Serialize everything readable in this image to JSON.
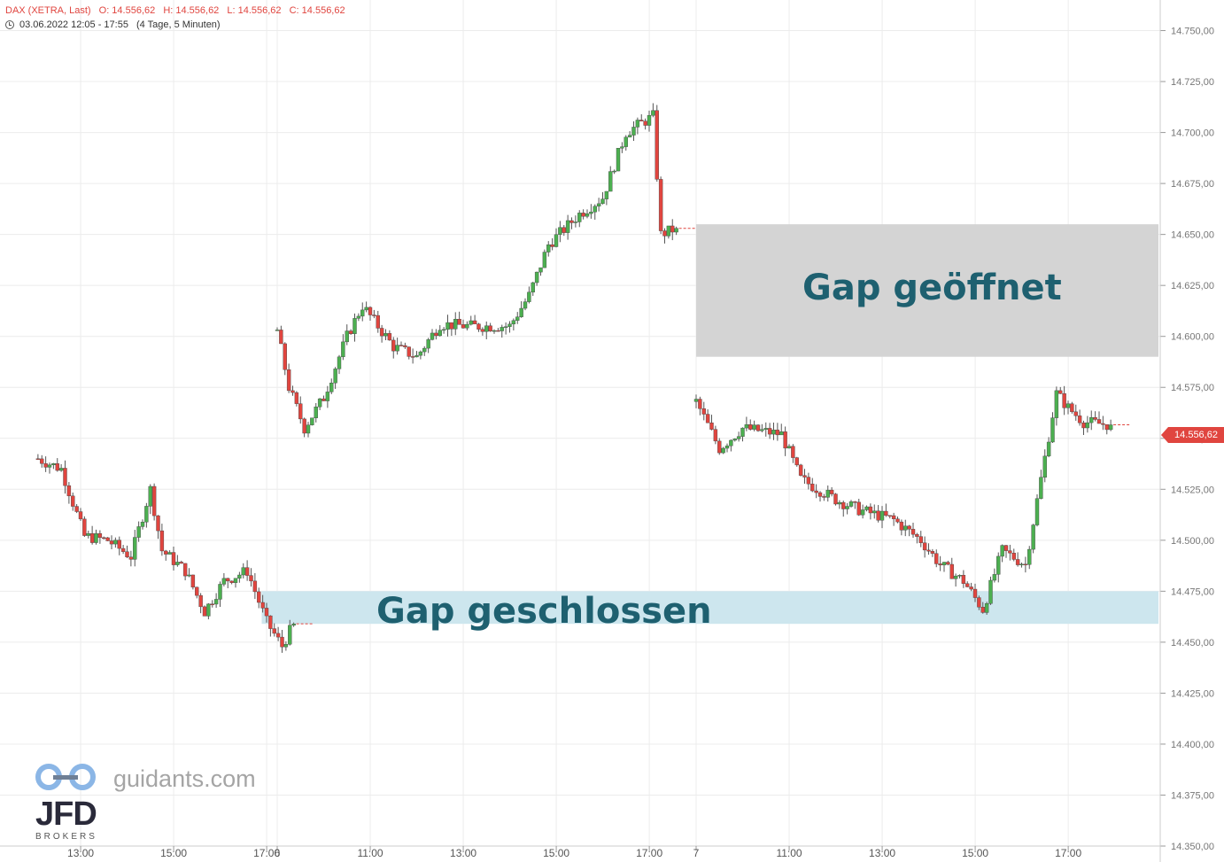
{
  "header": {
    "instrument": "DAX (XETRA, Last)",
    "open": "O: 14.556,62",
    "high": "H: 14.556,62",
    "low": "L: 14.556,62",
    "close": "C: 14.556,62",
    "period": "03.06.2022 12:05 - 17:55",
    "range_info": "(4 Tage, 5 Minuten)"
  },
  "last_price_label": "14.556,62",
  "annotations": {
    "gap_open": "Gap geöffnet",
    "gap_closed": "Gap geschlossen"
  },
  "branding": {
    "site": "guidants.com",
    "broker_logo": "JFD",
    "broker_sub": "BROKERS"
  },
  "colors": {
    "up": "#4caf50",
    "down": "#e0453f",
    "gap_open_zone": "#d4d4d4",
    "gap_closed_zone": "#cde6ee",
    "annotation_text": "#1e6070"
  },
  "chart_data": {
    "type": "candlestick",
    "ylim": [
      14350,
      14765
    ],
    "y_ticks": [
      14350,
      14375,
      14400,
      14425,
      14450,
      14475,
      14500,
      14525,
      14550,
      14575,
      14600,
      14625,
      14650,
      14675,
      14700,
      14725,
      14750
    ],
    "y_tick_labels": [
      "14.350,00",
      "14.375,00",
      "14.400,00",
      "14.425,00",
      "14.450,00",
      "14.475,00",
      "14.500,00",
      "14.525,00",
      "14.550,00",
      "14.575,00",
      "14.600,00",
      "14.625,00",
      "14.650,00",
      "14.675,00",
      "14.700,00",
      "14.725,00",
      "14.750,00"
    ],
    "x_ticks": [
      {
        "session": 0,
        "time": "13:00",
        "label": "13:00"
      },
      {
        "session": 0,
        "time": "15:00",
        "label": "15:00"
      },
      {
        "session": 0,
        "time": "17:00",
        "label": "17:00"
      },
      {
        "session": 1,
        "time": "09:00",
        "label": "6"
      },
      {
        "session": 1,
        "time": "11:00",
        "label": "11:00"
      },
      {
        "session": 1,
        "time": "13:00",
        "label": "13:00"
      },
      {
        "session": 1,
        "time": "15:00",
        "label": "15:00"
      },
      {
        "session": 1,
        "time": "17:00",
        "label": "17:00"
      },
      {
        "session": 2,
        "time": "09:00",
        "label": "7"
      },
      {
        "session": 2,
        "time": "11:00",
        "label": "11:00"
      },
      {
        "session": 2,
        "time": "13:00",
        "label": "13:00"
      },
      {
        "session": 2,
        "time": "15:00",
        "label": "15:00"
      },
      {
        "session": 2,
        "time": "17:00",
        "label": "17:00"
      }
    ],
    "sessions": [
      {
        "date": "03.06.2022",
        "start": "12:05",
        "end": "17:35",
        "close": 14459
      },
      {
        "date": "06.06.2022",
        "start": "09:00",
        "end": "17:35",
        "open": 14603,
        "close": 14653
      },
      {
        "date": "07.06.2022",
        "start": "09:00",
        "end": "17:55",
        "open": 14568,
        "close": 14556.62
      }
    ],
    "path": [
      {
        "session": 0,
        "time": "12:05",
        "price": 14540
      },
      {
        "session": 0,
        "time": "12:35",
        "price": 14535
      },
      {
        "session": 0,
        "time": "13:05",
        "price": 14502
      },
      {
        "session": 0,
        "time": "13:35",
        "price": 14500
      },
      {
        "session": 0,
        "time": "14:05",
        "price": 14492
      },
      {
        "session": 0,
        "time": "14:30",
        "price": 14525
      },
      {
        "session": 0,
        "time": "14:45",
        "price": 14495
      },
      {
        "session": 0,
        "time": "15:15",
        "price": 14485
      },
      {
        "session": 0,
        "time": "15:40",
        "price": 14465
      },
      {
        "session": 0,
        "time": "16:05",
        "price": 14480
      },
      {
        "session": 0,
        "time": "16:35",
        "price": 14485
      },
      {
        "session": 0,
        "time": "17:00",
        "price": 14460
      },
      {
        "session": 0,
        "time": "17:20",
        "price": 14448
      },
      {
        "session": 0,
        "time": "17:35",
        "price": 14459
      },
      {
        "session": 1,
        "time": "09:00",
        "price": 14603
      },
      {
        "session": 1,
        "time": "09:15",
        "price": 14575
      },
      {
        "session": 1,
        "time": "09:35",
        "price": 14555
      },
      {
        "session": 1,
        "time": "10:00",
        "price": 14570
      },
      {
        "session": 1,
        "time": "10:30",
        "price": 14600
      },
      {
        "session": 1,
        "time": "10:50",
        "price": 14615
      },
      {
        "session": 1,
        "time": "11:30",
        "price": 14595
      },
      {
        "session": 1,
        "time": "12:00",
        "price": 14590
      },
      {
        "session": 1,
        "time": "12:30",
        "price": 14606
      },
      {
        "session": 1,
        "time": "13:10",
        "price": 14605
      },
      {
        "session": 1,
        "time": "14:00",
        "price": 14605
      },
      {
        "session": 1,
        "time": "14:25",
        "price": 14620
      },
      {
        "session": 1,
        "time": "14:50",
        "price": 14645
      },
      {
        "session": 1,
        "time": "15:30",
        "price": 14660
      },
      {
        "session": 1,
        "time": "16:00",
        "price": 14668
      },
      {
        "session": 1,
        "time": "16:30",
        "price": 14700
      },
      {
        "session": 1,
        "time": "17:05",
        "price": 14708
      },
      {
        "session": 1,
        "time": "17:15",
        "price": 14650
      },
      {
        "session": 1,
        "time": "17:35",
        "price": 14653
      },
      {
        "session": 2,
        "time": "09:00",
        "price": 14568
      },
      {
        "session": 2,
        "time": "09:30",
        "price": 14545
      },
      {
        "session": 2,
        "time": "10:00",
        "price": 14555
      },
      {
        "session": 2,
        "time": "10:50",
        "price": 14552
      },
      {
        "session": 2,
        "time": "11:15",
        "price": 14530
      },
      {
        "session": 2,
        "time": "12:00",
        "price": 14520
      },
      {
        "session": 2,
        "time": "12:30",
        "price": 14515
      },
      {
        "session": 2,
        "time": "13:15",
        "price": 14510
      },
      {
        "session": 2,
        "time": "13:50",
        "price": 14500
      },
      {
        "session": 2,
        "time": "14:15",
        "price": 14488
      },
      {
        "session": 2,
        "time": "14:45",
        "price": 14480
      },
      {
        "session": 2,
        "time": "15:10",
        "price": 14466
      },
      {
        "session": 2,
        "time": "15:35",
        "price": 14495
      },
      {
        "session": 2,
        "time": "16:05",
        "price": 14488
      },
      {
        "session": 2,
        "time": "16:25",
        "price": 14530
      },
      {
        "session": 2,
        "time": "16:45",
        "price": 14572
      },
      {
        "session": 2,
        "time": "17:00",
        "price": 14565
      },
      {
        "session": 2,
        "time": "17:20",
        "price": 14558
      },
      {
        "session": 2,
        "time": "17:55",
        "price": 14556.62
      }
    ],
    "zones": [
      {
        "name": "gap_open",
        "from": {
          "session": 2,
          "time": "09:00"
        },
        "to": "end",
        "y_from": 14590,
        "y_to": 14655
      },
      {
        "name": "gap_closed",
        "from": {
          "session": 1,
          "time": "08:40"
        },
        "to": "end",
        "y_from": 14459,
        "y_to": 14475
      }
    ]
  }
}
